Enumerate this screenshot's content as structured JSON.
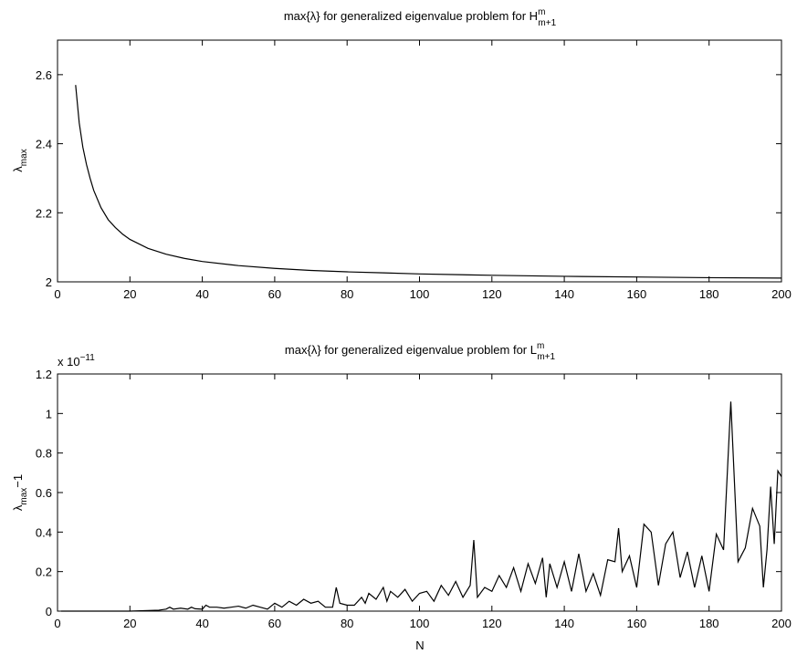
{
  "chart_data": [
    {
      "type": "line",
      "title": "max{λ} for generalized eigenvalue problem for H",
      "title_sup": "m",
      "title_sub": "m+1",
      "ylabel": "λ",
      "ylabel_sub": "max",
      "color": "#000000",
      "x": [
        5,
        6,
        7,
        8,
        9,
        10,
        12,
        14,
        16,
        18,
        20,
        25,
        30,
        35,
        40,
        50,
        60,
        70,
        80,
        90,
        100,
        120,
        140,
        160,
        180,
        200
      ],
      "values": [
        2.57,
        2.46,
        2.39,
        2.34,
        2.3,
        2.265,
        2.215,
        2.18,
        2.157,
        2.138,
        2.123,
        2.097,
        2.08,
        2.068,
        2.059,
        2.047,
        2.039,
        2.033,
        2.029,
        2.026,
        2.023,
        2.019,
        2.016,
        2.014,
        2.012,
        2.011
      ],
      "xlim": [
        0,
        200
      ],
      "xticks": [
        0,
        20,
        40,
        60,
        80,
        100,
        120,
        140,
        160,
        180,
        200
      ],
      "ylim": [
        2,
        2.7
      ],
      "yticks": [
        2,
        2.2,
        2.4,
        2.6
      ]
    },
    {
      "type": "line",
      "title": "max{λ} for generalized eigenvalue problem for L",
      "title_sup": "m",
      "title_sub": "m+1",
      "ylabel": "λ",
      "ylabel_sub": "max",
      "ylabel_suffix": "−1",
      "xlabel": "N",
      "scale_label": "x 10",
      "scale_exponent": "−11",
      "color": "#000000",
      "x": [
        1,
        5,
        10,
        15,
        20,
        25,
        28,
        30,
        31,
        32,
        34,
        36,
        37,
        38,
        40,
        41,
        42,
        44,
        46,
        48,
        50,
        52,
        54,
        56,
        58,
        60,
        62,
        64,
        66,
        68,
        70,
        72,
        74,
        76,
        77,
        78,
        80,
        82,
        84,
        85,
        86,
        88,
        90,
        91,
        92,
        94,
        96,
        98,
        100,
        102,
        104,
        106,
        108,
        110,
        112,
        114,
        115,
        116,
        118,
        120,
        122,
        124,
        126,
        128,
        130,
        132,
        134,
        135,
        136,
        138,
        140,
        142,
        144,
        146,
        148,
        150,
        152,
        154,
        155,
        156,
        158,
        160,
        162,
        164,
        166,
        168,
        170,
        172,
        174,
        176,
        178,
        180,
        182,
        184,
        186,
        188,
        190,
        192,
        194,
        195,
        196,
        197,
        198,
        199,
        200
      ],
      "values": [
        0,
        0,
        0,
        0,
        0,
        0.003,
        0.005,
        0.01,
        0.02,
        0.01,
        0.015,
        0.01,
        0.02,
        0.012,
        0.01,
        0.03,
        0.02,
        0.02,
        0.015,
        0.02,
        0.025,
        0.015,
        0.03,
        0.02,
        0.01,
        0.04,
        0.02,
        0.05,
        0.03,
        0.06,
        0.04,
        0.05,
        0.02,
        0.02,
        0.12,
        0.04,
        0.03,
        0.03,
        0.07,
        0.04,
        0.09,
        0.06,
        0.12,
        0.05,
        0.1,
        0.07,
        0.11,
        0.05,
        0.09,
        0.1,
        0.05,
        0.13,
        0.08,
        0.15,
        0.07,
        0.13,
        0.36,
        0.07,
        0.12,
        0.1,
        0.18,
        0.12,
        0.22,
        0.1,
        0.24,
        0.14,
        0.27,
        0.07,
        0.24,
        0.12,
        0.25,
        0.1,
        0.29,
        0.1,
        0.19,
        0.08,
        0.26,
        0.25,
        0.42,
        0.2,
        0.28,
        0.12,
        0.44,
        0.4,
        0.13,
        0.34,
        0.4,
        0.17,
        0.3,
        0.12,
        0.28,
        0.1,
        0.39,
        0.31,
        1.06,
        0.25,
        0.32,
        0.52,
        0.43,
        0.12,
        0.31,
        0.63,
        0.34,
        0.71,
        0.68
      ],
      "xlim": [
        0,
        200
      ],
      "xticks": [
        0,
        20,
        40,
        60,
        80,
        100,
        120,
        140,
        160,
        180,
        200
      ],
      "ylim": [
        0,
        1.2
      ],
      "yticks": [
        0,
        0.2,
        0.4,
        0.6,
        0.8,
        1,
        1.2
      ]
    }
  ]
}
